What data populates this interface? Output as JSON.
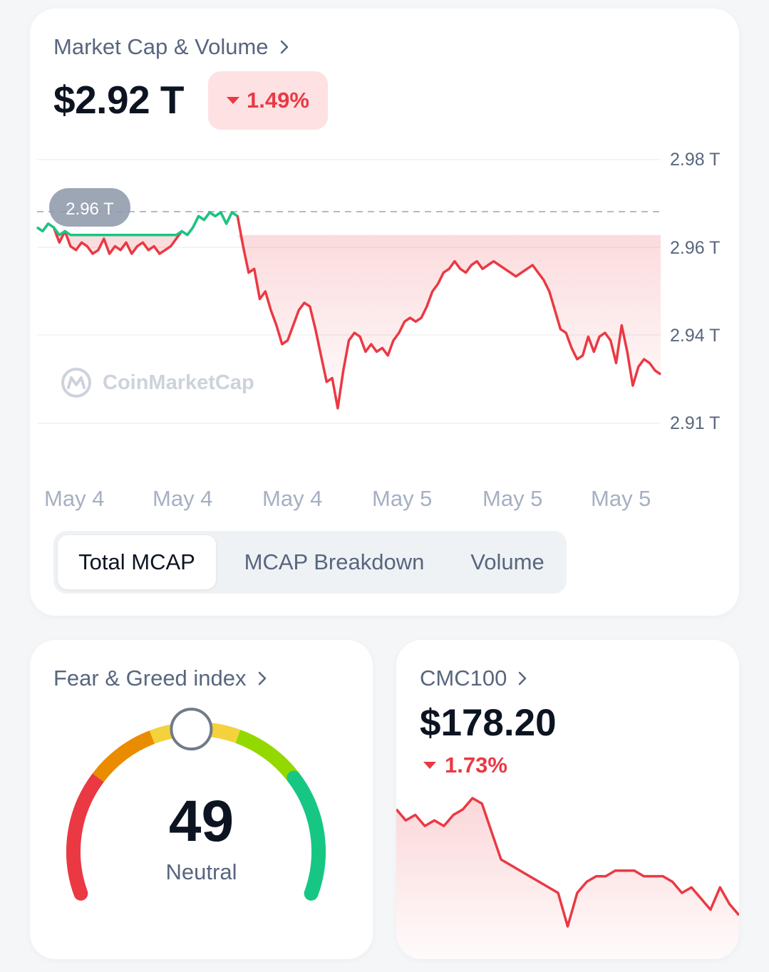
{
  "market_cap": {
    "title": "Market Cap & Volume",
    "value": "$2.92 T",
    "change": "1.49%",
    "change_direction": "down",
    "tooltip": "2.96 T",
    "watermark": "CoinMarketCap",
    "y_labels": [
      "2.98 T",
      "2.96 T",
      "2.94 T",
      "2.91 T"
    ],
    "x_labels": [
      "May 4",
      "May 4",
      "May 4",
      "May 5",
      "May 5",
      "May 5"
    ],
    "tabs": [
      {
        "label": "Total MCAP",
        "active": true
      },
      {
        "label": "MCAP Breakdown",
        "active": false
      },
      {
        "label": "Volume",
        "active": false
      }
    ]
  },
  "fear_greed": {
    "title": "Fear & Greed index",
    "value": "49",
    "label": "Neutral"
  },
  "cmc100": {
    "title": "CMC100",
    "value": "$178.20",
    "change": "1.73%",
    "change_direction": "down"
  },
  "colors": {
    "up": "#16c784",
    "down": "#ea3943",
    "text_primary": "#0d1421",
    "text_secondary": "#58667e"
  },
  "chart_data": [
    {
      "type": "line",
      "title": "",
      "y_ticks": [
        "2.98 T",
        "2.96 T",
        "2.94 T",
        "2.91 T"
      ],
      "ylim": [
        2.91,
        2.98
      ],
      "x_ticks": [
        "May 4",
        "May 4",
        "May 4",
        "May 5",
        "May 5",
        "May 5"
      ],
      "baseline": 2.96,
      "series": [
        {
          "values": [
            2.962,
            2.961,
            2.963,
            2.962,
            2.958,
            2.961,
            2.957,
            2.956,
            2.958,
            2.957,
            2.955,
            2.956,
            2.959,
            2.955,
            2.957,
            2.956,
            2.958,
            2.955,
            2.957,
            2.958,
            2.956,
            2.957,
            2.955,
            2.956,
            2.957,
            2.959,
            2.961,
            2.96,
            2.962,
            2.965,
            2.964,
            2.966,
            2.965,
            2.966,
            2.963,
            2.966,
            2.965,
            2.957,
            2.95,
            2.951,
            2.943,
            2.945,
            2.94,
            2.936,
            2.931,
            2.932,
            2.936,
            2.94,
            2.942,
            2.941,
            2.935,
            2.928,
            2.921,
            2.922,
            2.914,
            2.924,
            2.932,
            2.934,
            2.933,
            2.929,
            2.931,
            2.929,
            2.93,
            2.928,
            2.932,
            2.934,
            2.937,
            2.938,
            2.937,
            2.938,
            2.941,
            2.945,
            2.947,
            2.95,
            2.951,
            2.953,
            2.951,
            2.95,
            2.952,
            2.953,
            2.951,
            2.952,
            2.953,
            2.952,
            2.951,
            2.95,
            2.949,
            2.95,
            2.951,
            2.952,
            2.95,
            2.948,
            2.945,
            2.94,
            2.935,
            2.934,
            2.93,
            2.927,
            2.928,
            2.933,
            2.929,
            2.933,
            2.934,
            2.932,
            2.926,
            2.936,
            2.929,
            2.92,
            2.925,
            2.927,
            2.926,
            2.924,
            2.923
          ]
        }
      ]
    },
    {
      "type": "area",
      "title": "",
      "series": [
        {
          "values": [
            59,
            57,
            58,
            56,
            57,
            56,
            58,
            59,
            61,
            60,
            55,
            50,
            49,
            48,
            47,
            46,
            45,
            44,
            38,
            44,
            46,
            47,
            47,
            48,
            48,
            48,
            47,
            47,
            47,
            46,
            44,
            45,
            43,
            41,
            45,
            42,
            40
          ]
        }
      ]
    }
  ]
}
